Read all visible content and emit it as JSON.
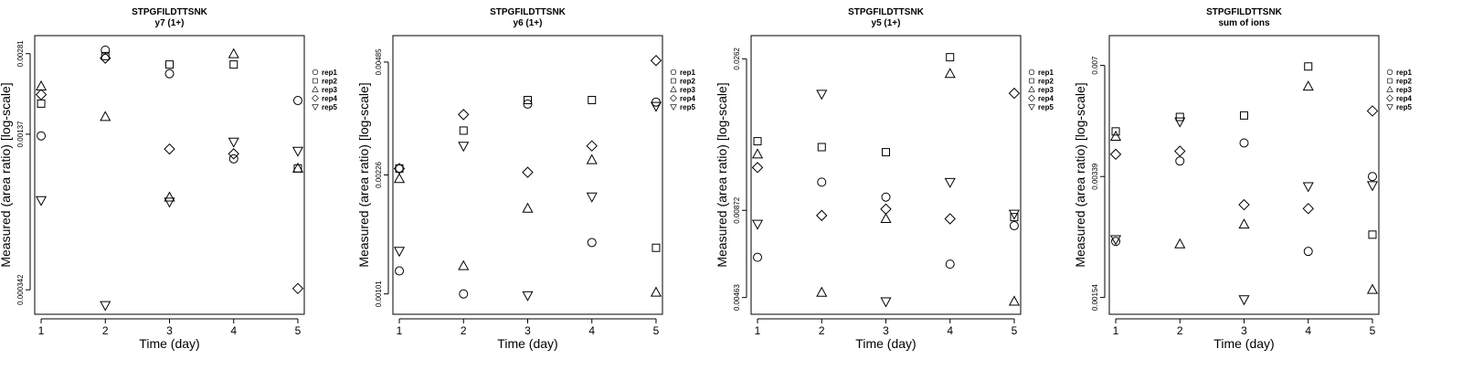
{
  "chart_data": [
    {
      "type": "scatter",
      "title": "STPGFILDTTSNK",
      "subtitle": "y7 (1+)",
      "xlabel": "Time (day)",
      "ylabel": "Measured (area ratio) [log-scale]",
      "x": [
        1,
        2,
        3,
        4,
        5
      ],
      "xlim": [
        0.9,
        5.1
      ],
      "yscale": "log",
      "ylim": [
        0.000275,
        0.0033
      ],
      "yticks": [
        0.00281,
        0.00137,
        0.000342
      ],
      "ytick_labels": [
        "0.00281",
        "0.00137",
        "0.000342"
      ],
      "series": [
        {
          "name": "rep1",
          "marker": "circle",
          "values": [
            0.00135,
            0.0029,
            0.00235,
            0.0011,
            0.00185
          ]
        },
        {
          "name": "rep2",
          "marker": "square",
          "values": [
            0.0018,
            0.00275,
            0.00255,
            0.00255,
            0.00101
          ]
        },
        {
          "name": "rep3",
          "marker": "triangle-up",
          "values": [
            0.0021,
            0.0016,
            0.00078,
            0.0028,
            0.00101
          ]
        },
        {
          "name": "rep4",
          "marker": "diamond",
          "values": [
            0.00195,
            0.0027,
            0.0012,
            0.00115,
            0.000346
          ]
        },
        {
          "name": "rep5",
          "marker": "triangle-down",
          "values": [
            0.00076,
            0.000298,
            0.00075,
            0.00128,
            0.00118
          ]
        }
      ],
      "legend": [
        "rep1",
        "rep2",
        "rep3",
        "rep4",
        "rep5"
      ]
    },
    {
      "type": "scatter",
      "title": "STPGFILDTTSNK",
      "subtitle": "y6 (1+)",
      "xlabel": "Time (day)",
      "ylabel": "Measured (area ratio) [log-scale]",
      "x": [
        1,
        2,
        3,
        4,
        5
      ],
      "xlim": [
        0.9,
        5.1
      ],
      "yscale": "log",
      "ylim": [
        0.00088,
        0.0058
      ],
      "yticks": [
        0.00485,
        0.00226,
        0.00101
      ],
      "ytick_labels": [
        "0.00485",
        "0.00226",
        "0.00101"
      ],
      "series": [
        {
          "name": "rep1",
          "marker": "circle",
          "values": [
            0.00118,
            0.00101,
            0.00365,
            0.00143,
            0.0037
          ]
        },
        {
          "name": "rep2",
          "marker": "square",
          "values": [
            0.00236,
            0.00305,
            0.00375,
            0.00375,
            0.00138
          ]
        },
        {
          "name": "rep3",
          "marker": "triangle-up",
          "values": [
            0.0022,
            0.00122,
            0.0018,
            0.0025,
            0.00102
          ]
        },
        {
          "name": "rep4",
          "marker": "diamond",
          "values": [
            0.00236,
            0.0034,
            0.0023,
            0.00275,
            0.0049
          ]
        },
        {
          "name": "rep5",
          "marker": "triangle-down",
          "values": [
            0.00135,
            0.00275,
            0.001,
            0.00195,
            0.0036
          ]
        }
      ],
      "legend": [
        "rep1",
        "rep2",
        "rep3",
        "rep4",
        "rep5"
      ]
    },
    {
      "type": "scatter",
      "title": "STPGFILDTTSNK",
      "subtitle": "y5 (1+)",
      "xlabel": "Time (day)",
      "ylabel": "Measured (area ratio) [log-scale]",
      "x": [
        1,
        2,
        3,
        4,
        5
      ],
      "xlim": [
        0.9,
        5.1
      ],
      "yscale": "log",
      "ylim": [
        0.0041,
        0.031
      ],
      "yticks": [
        0.0262,
        0.00872,
        0.00463
      ],
      "ytick_labels": [
        "0.0262",
        "0.00872",
        "0.00463"
      ],
      "series": [
        {
          "name": "rep1",
          "marker": "circle",
          "values": [
            0.0062,
            0.0107,
            0.0096,
            0.0059,
            0.0078
          ]
        },
        {
          "name": "rep2",
          "marker": "square",
          "values": [
            0.0144,
            0.0138,
            0.0133,
            0.0265,
            0.0083
          ]
        },
        {
          "name": "rep3",
          "marker": "triangle-up",
          "values": [
            0.0131,
            0.0048,
            0.0082,
            0.0235,
            0.0045
          ]
        },
        {
          "name": "rep4",
          "marker": "diamond",
          "values": [
            0.0119,
            0.0084,
            0.0088,
            0.0082,
            0.0204
          ]
        },
        {
          "name": "rep5",
          "marker": "triangle-down",
          "values": [
            0.0079,
            0.0203,
            0.0045,
            0.0107,
            0.0085
          ]
        }
      ],
      "legend": [
        "rep1",
        "rep2",
        "rep3",
        "rep4",
        "rep5"
      ]
    },
    {
      "type": "scatter",
      "title": "STPGFILDTTSNK",
      "subtitle": "sum of ions",
      "xlabel": "Time (day)",
      "ylabel": "Measured (area ratio) [log-scale]",
      "x": [
        1,
        2,
        3,
        4,
        5
      ],
      "xlim": [
        0.9,
        5.1
      ],
      "yscale": "log",
      "ylim": [
        0.00138,
        0.0085
      ],
      "yticks": [
        0.007,
        0.00339,
        0.00154
      ],
      "ytick_labels": [
        "0.007",
        "0.00339",
        "0.00154"
      ],
      "series": [
        {
          "name": "rep1",
          "marker": "circle",
          "values": [
            0.00222,
            0.00375,
            0.00422,
            0.00208,
            0.00339
          ]
        },
        {
          "name": "rep2",
          "marker": "square",
          "values": [
            0.00455,
            0.005,
            0.00505,
            0.00695,
            0.00232
          ]
        },
        {
          "name": "rep3",
          "marker": "triangle-up",
          "values": [
            0.0044,
            0.00218,
            0.00248,
            0.0061,
            0.00162
          ]
        },
        {
          "name": "rep4",
          "marker": "diamond",
          "values": [
            0.00392,
            0.004,
            0.00282,
            0.00275,
            0.0052
          ]
        },
        {
          "name": "rep5",
          "marker": "triangle-down",
          "values": [
            0.00225,
            0.00485,
            0.00152,
            0.00318,
            0.0032
          ]
        }
      ],
      "legend": [
        "rep1",
        "rep2",
        "rep3",
        "rep4",
        "rep5"
      ]
    }
  ]
}
